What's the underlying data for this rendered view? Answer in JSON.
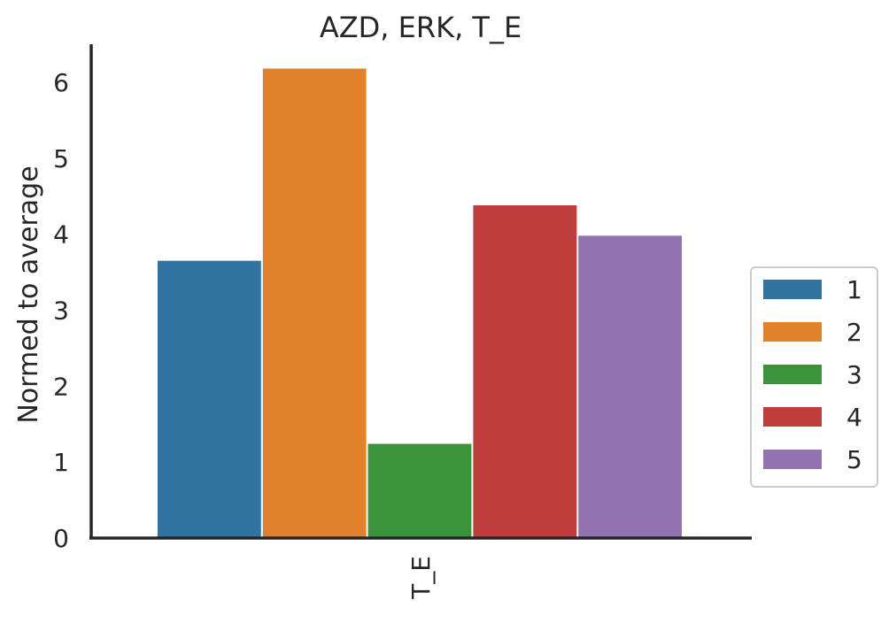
{
  "chart_data": {
    "type": "bar",
    "title": "AZD, ERK, T_E",
    "xlabel": "",
    "ylabel": "Normed to average",
    "categories": [
      "T_E"
    ],
    "series": [
      {
        "name": "1",
        "values": [
          3.65
        ],
        "color": "#3274a1"
      },
      {
        "name": "2",
        "values": [
          6.18
        ],
        "color": "#e1812c"
      },
      {
        "name": "3",
        "values": [
          1.24
        ],
        "color": "#3a923a"
      },
      {
        "name": "4",
        "values": [
          4.38
        ],
        "color": "#c03d3e"
      },
      {
        "name": "5",
        "values": [
          3.98
        ],
        "color": "#9372b2"
      }
    ],
    "ylim": [
      0,
      6.5
    ],
    "yticks": [
      "0",
      "1",
      "2",
      "3",
      "4",
      "5",
      "6"
    ],
    "grid": false,
    "legend_position": "right"
  }
}
